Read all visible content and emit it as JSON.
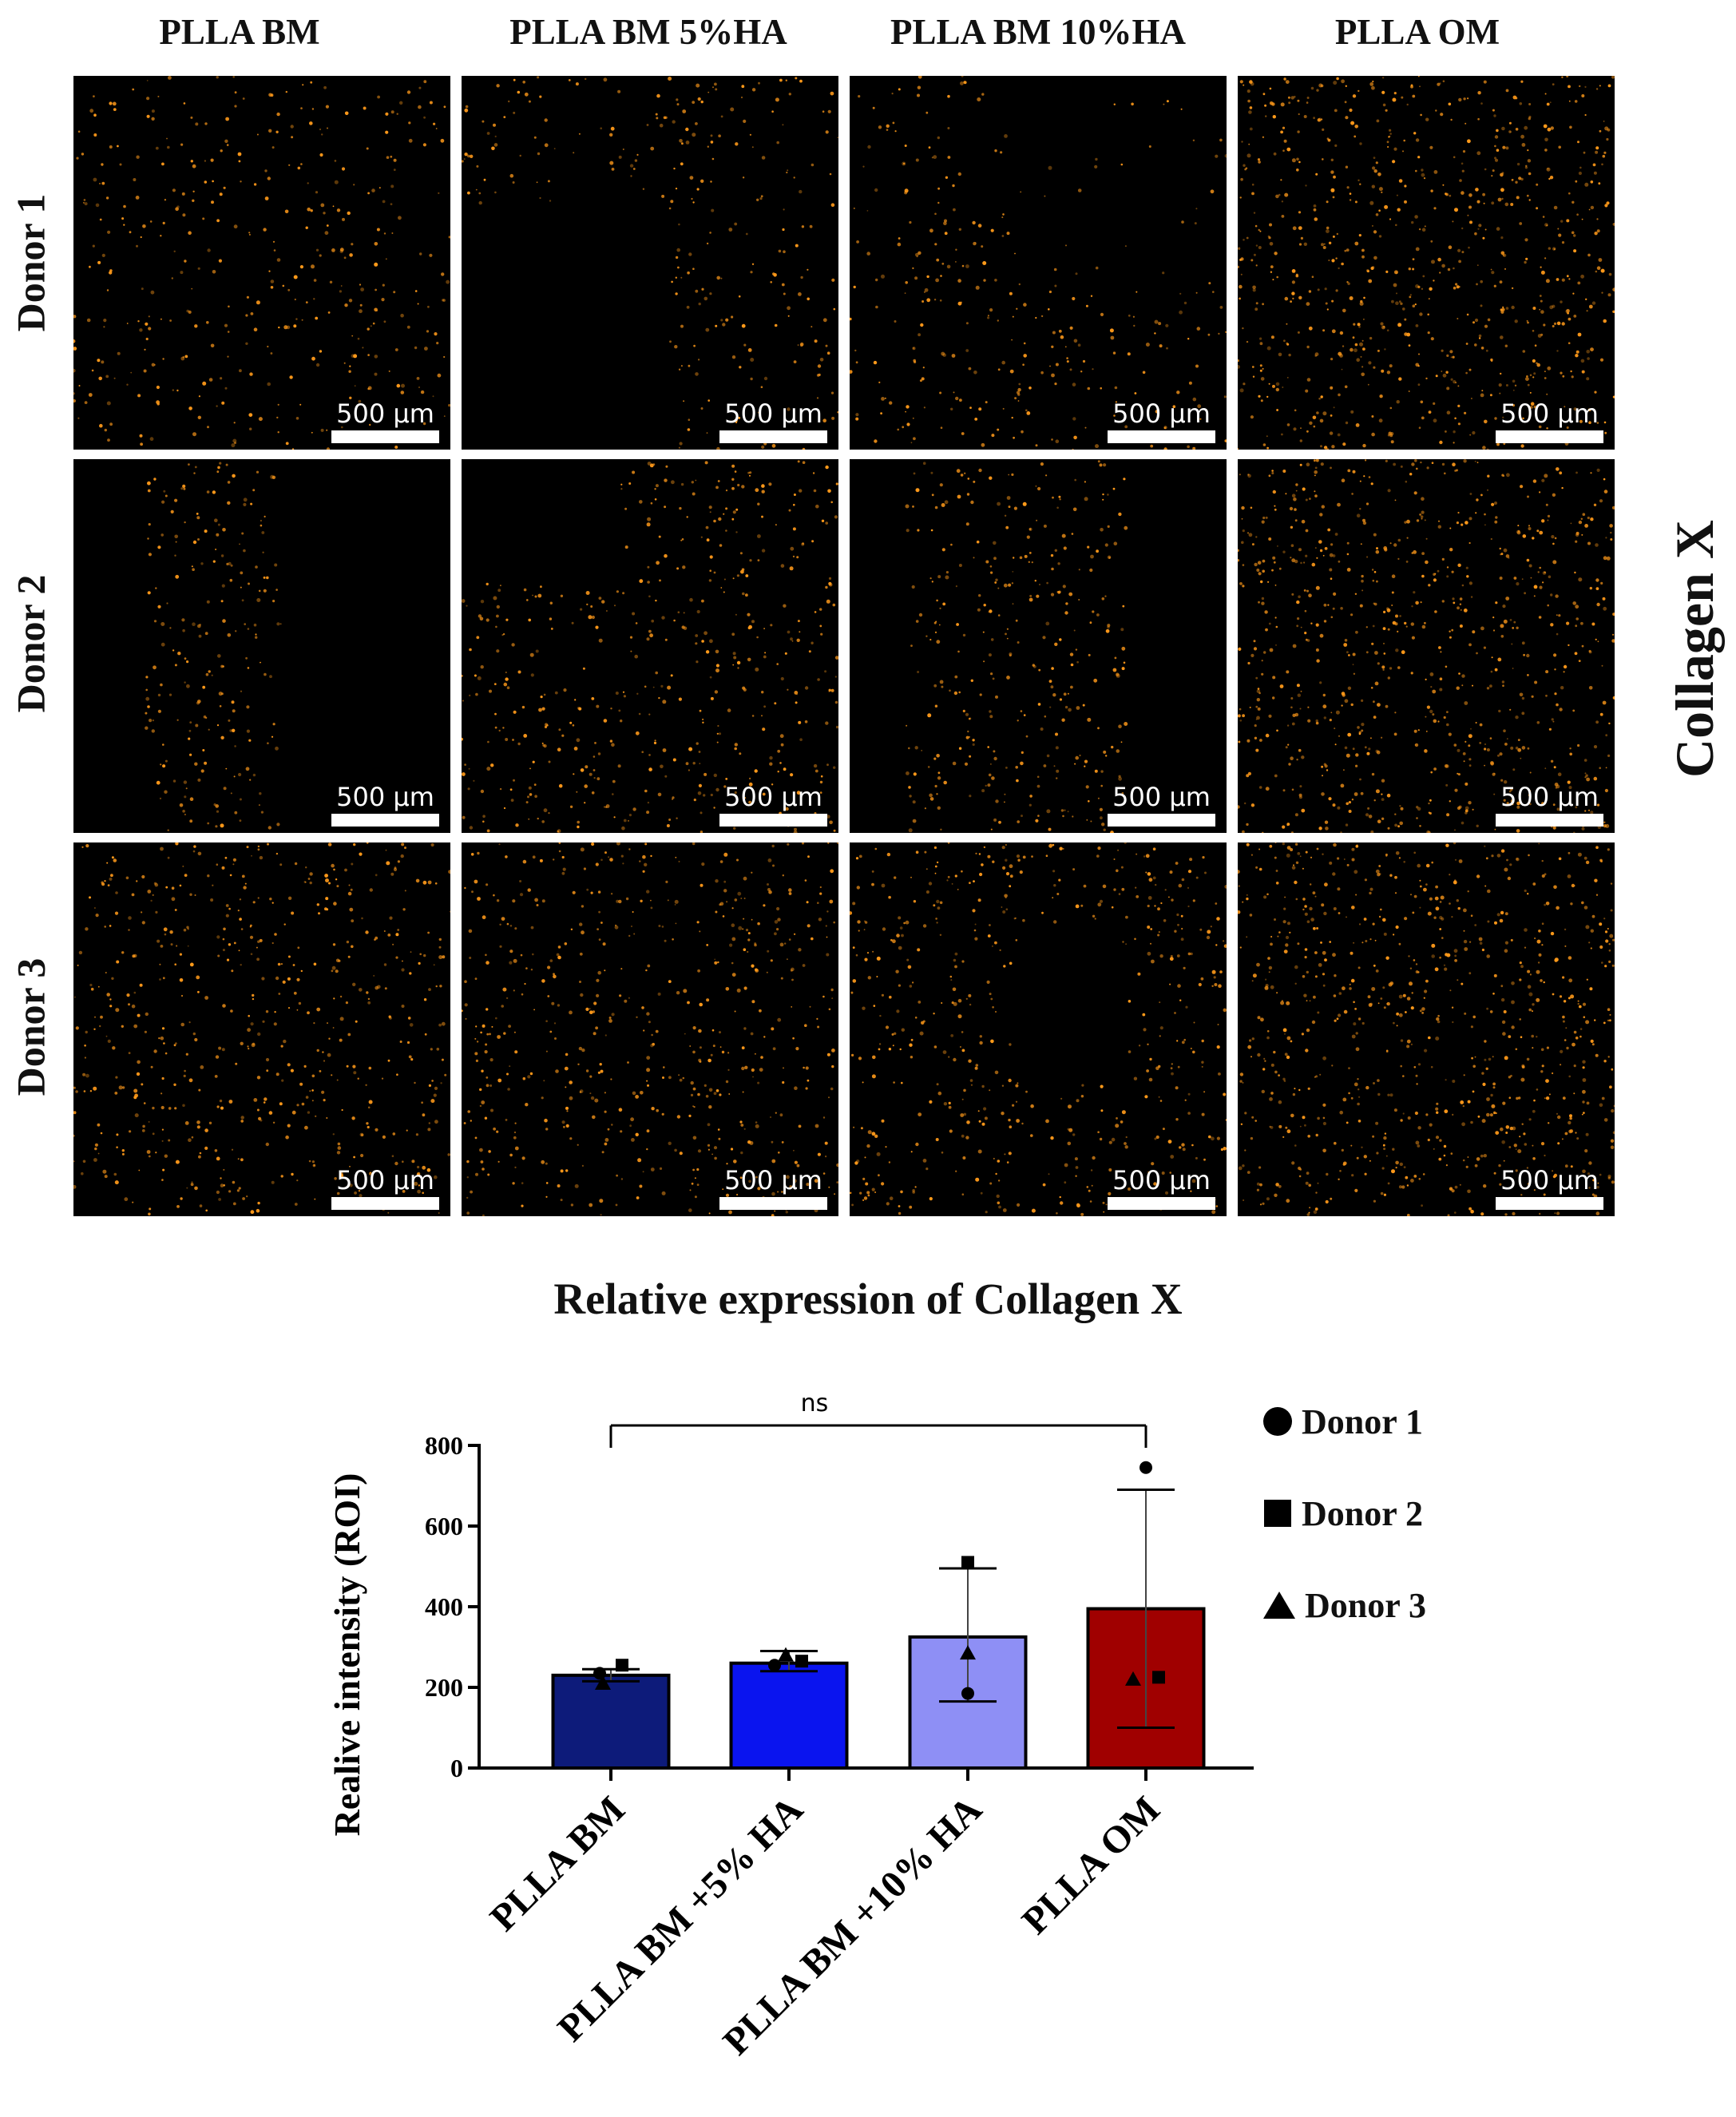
{
  "columns": [
    "PLLA BM",
    "PLLA BM 5%HA",
    "PLLA BM 10%HA",
    "PLLA OM"
  ],
  "rows": [
    "Donor 1",
    "Donor 2",
    "Donor 3"
  ],
  "scale_bar_label": "500 µm",
  "side_label": "Collagen X",
  "colors": {
    "fluorescence": "#ff9a1a",
    "bar_fills": [
      "#0d1b7a",
      "#0a14ef",
      "#8e8ff5",
      "#a00000"
    ]
  },
  "chart_data": {
    "type": "bar",
    "title": "Relative expression of Collagen X",
    "xlabel": "",
    "ylabel": "Realive intensity (ROI)",
    "ylim": [
      0,
      800
    ],
    "yticks": [
      0,
      200,
      400,
      600,
      800
    ],
    "categories": [
      "PLLA BM",
      "PLLA BM +5% HA",
      "PLLA BM +10% HA",
      "PLLA OM"
    ],
    "values": [
      230,
      260,
      325,
      395
    ],
    "error_bars": [
      [
        215,
        245
      ],
      [
        240,
        290
      ],
      [
        165,
        495
      ],
      [
        100,
        690
      ]
    ],
    "points": [
      {
        "donor": "Donor 1",
        "marker": "circle",
        "values": [
          235,
          255,
          185,
          745
        ]
      },
      {
        "donor": "Donor 2",
        "marker": "square",
        "values": [
          255,
          265,
          510,
          225
        ]
      },
      {
        "donor": "Donor 3",
        "marker": "triangle",
        "values": [
          210,
          280,
          285,
          220
        ]
      }
    ],
    "significance": {
      "from": 0,
      "to": 3,
      "label": "ns"
    },
    "legend": [
      "Donor 1",
      "Donor 2",
      "Donor 3"
    ],
    "legend_position": "right"
  }
}
